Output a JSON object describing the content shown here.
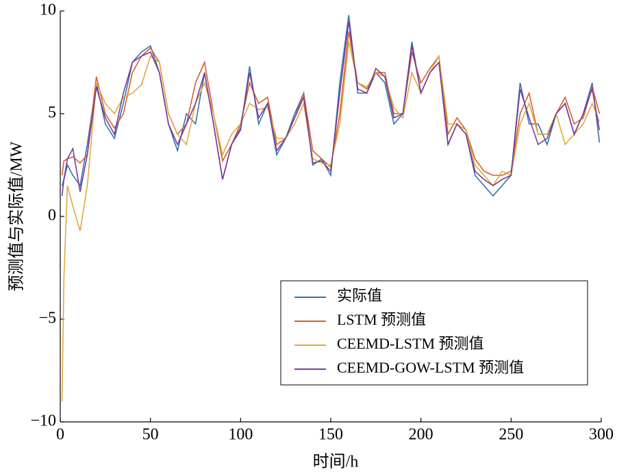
{
  "chart_data": {
    "type": "line",
    "xlabel": "时间/h",
    "ylabel": "预测值与实际值/MW",
    "x": [
      1,
      2,
      4,
      7,
      11,
      15,
      20,
      25,
      30,
      35,
      40,
      45,
      50,
      55,
      60,
      65,
      70,
      75,
      80,
      85,
      90,
      95,
      100,
      105,
      110,
      115,
      120,
      125,
      130,
      135,
      140,
      145,
      150,
      155,
      160,
      165,
      170,
      175,
      180,
      185,
      190,
      195,
      200,
      205,
      210,
      215,
      220,
      225,
      230,
      235,
      240,
      245,
      250,
      255,
      260,
      265,
      270,
      275,
      280,
      285,
      290,
      295,
      299
    ],
    "series": [
      {
        "name": "实际值",
        "color": "#2e72b0",
        "values": [
          1.5,
          1.8,
          2.5,
          2.0,
          1.5,
          3.5,
          6.5,
          4.5,
          3.8,
          5.5,
          7.5,
          8.0,
          8.3,
          7.0,
          4.5,
          3.2,
          5.0,
          4.5,
          7.0,
          4.5,
          1.8,
          3.5,
          4.2,
          7.3,
          4.5,
          5.5,
          3.0,
          3.8,
          5.0,
          6.0,
          2.5,
          2.8,
          2.0,
          6.5,
          9.8,
          6.0,
          6.0,
          7.0,
          6.5,
          4.5,
          5.0,
          8.5,
          6.0,
          7.0,
          7.5,
          3.5,
          4.5,
          4.0,
          2.0,
          1.5,
          1.0,
          1.5,
          2.0,
          6.5,
          4.5,
          4.5,
          3.5,
          5.0,
          5.5,
          4.0,
          5.0,
          6.5,
          3.6
        ]
      },
      {
        "name": "LSTM 预测值",
        "color": "#d35f2f",
        "values": [
          2.0,
          2.7,
          2.8,
          2.9,
          2.6,
          3.0,
          6.8,
          5.0,
          4.3,
          5.0,
          7.0,
          7.8,
          8.2,
          7.5,
          5.0,
          4.0,
          4.5,
          6.5,
          7.5,
          5.0,
          2.7,
          3.5,
          4.5,
          6.5,
          5.5,
          5.8,
          3.5,
          3.8,
          4.8,
          6.0,
          3.2,
          2.8,
          2.4,
          5.0,
          9.0,
          6.5,
          6.2,
          7.0,
          7.0,
          5.0,
          5.0,
          8.0,
          6.5,
          7.2,
          7.8,
          4.0,
          4.8,
          4.2,
          2.8,
          2.2,
          2.0,
          2.0,
          2.2,
          5.0,
          6.0,
          4.0,
          4.0,
          5.0,
          5.8,
          4.5,
          4.8,
          6.3,
          5.0
        ]
      },
      {
        "name": "CEEMD-LSTM 预测值",
        "color": "#e0a83a",
        "values": [
          -9.0,
          -3.0,
          1.5,
          0.5,
          -0.7,
          1.5,
          6.5,
          5.5,
          5.0,
          5.8,
          6.0,
          6.4,
          7.8,
          7.5,
          5.0,
          4.0,
          3.5,
          5.5,
          6.5,
          5.0,
          3.0,
          4.0,
          4.5,
          5.5,
          5.2,
          5.3,
          3.8,
          3.8,
          4.5,
          5.5,
          2.8,
          2.6,
          2.5,
          4.5,
          8.5,
          6.5,
          6.3,
          7.0,
          6.8,
          5.3,
          4.8,
          7.0,
          6.0,
          7.0,
          7.8,
          4.5,
          4.5,
          4.2,
          2.5,
          2.0,
          1.5,
          2.2,
          2.0,
          4.5,
          5.5,
          4.0,
          4.0,
          5.0,
          3.5,
          4.0,
          4.5,
          5.5,
          4.6
        ]
      },
      {
        "name": "CEEMD-GOW-LSTM 预测值",
        "color": "#7b3a96",
        "values": [
          1.0,
          1.8,
          2.8,
          3.3,
          1.2,
          3.0,
          6.3,
          4.8,
          4.0,
          6.0,
          7.5,
          7.8,
          8.0,
          7.0,
          4.5,
          3.5,
          4.5,
          5.5,
          7.0,
          4.5,
          1.8,
          3.5,
          4.3,
          7.0,
          4.8,
          5.5,
          3.2,
          3.8,
          4.8,
          5.8,
          2.6,
          2.7,
          2.2,
          6.0,
          9.5,
          6.2,
          6.0,
          7.2,
          6.8,
          4.8,
          5.0,
          8.3,
          6.0,
          7.0,
          7.5,
          3.5,
          4.5,
          4.0,
          2.2,
          1.8,
          1.5,
          1.8,
          2.0,
          6.2,
          4.8,
          3.5,
          3.8,
          5.0,
          5.5,
          4.0,
          5.0,
          6.2,
          4.2
        ]
      }
    ],
    "xlim": [
      0,
      300
    ],
    "xticks": [
      0,
      50,
      100,
      150,
      200,
      250,
      300
    ],
    "ylim": [
      -10,
      10
    ],
    "yticks": [
      {
        "value": -10,
        "label": "−10"
      },
      {
        "value": -5,
        "label": "−5"
      },
      0,
      5,
      10
    ],
    "legend": "lower right"
  }
}
